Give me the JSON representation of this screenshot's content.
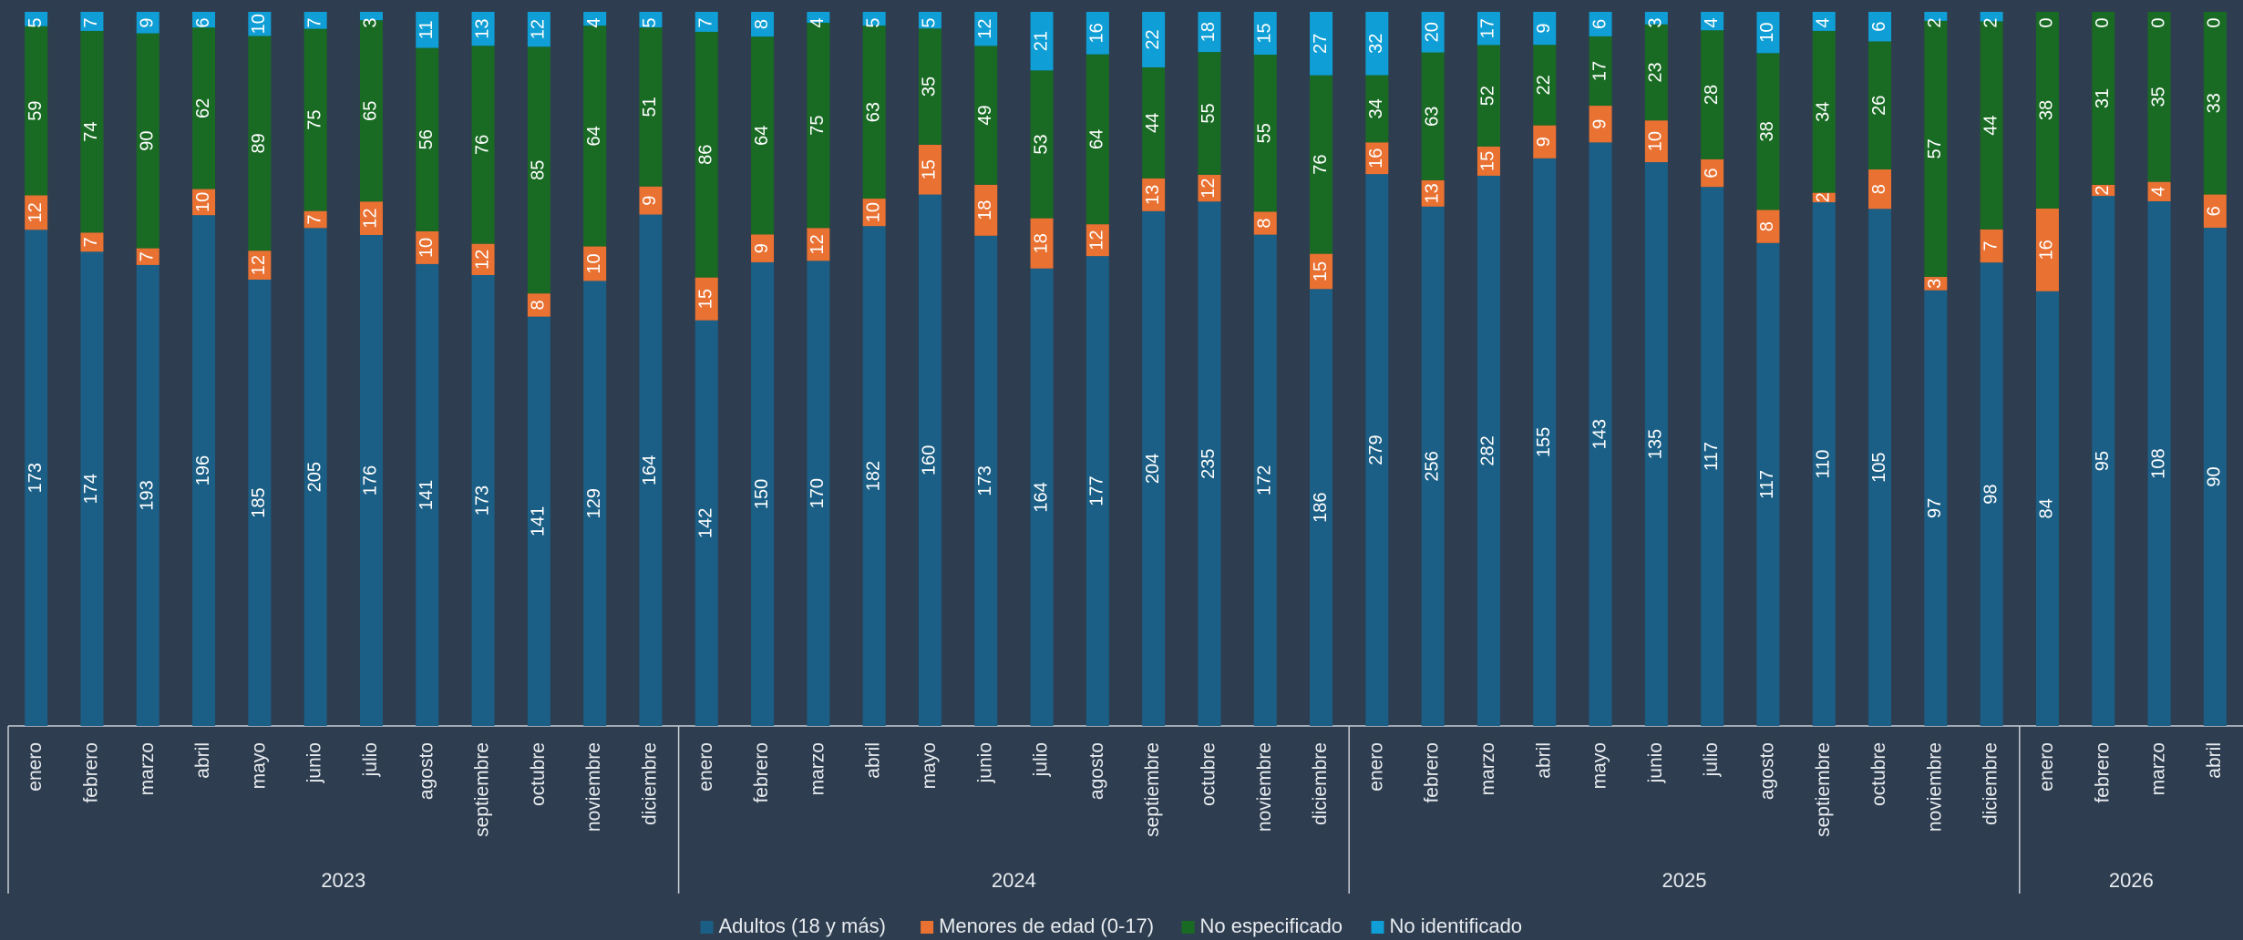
{
  "chart_data": {
    "type": "bar",
    "stacked": "percent",
    "groups": [
      {
        "name": "2023",
        "categories": [
          "enero",
          "febrero",
          "marzo",
          "abril",
          "mayo",
          "junio",
          "julio",
          "agosto",
          "septiembre",
          "octubre",
          "noviembre",
          "diciembre"
        ]
      },
      {
        "name": "2024",
        "categories": [
          "enero",
          "febrero",
          "marzo",
          "abril",
          "mayo",
          "junio",
          "julio",
          "agosto",
          "septiembre",
          "octubre",
          "noviembre",
          "diciembre"
        ]
      },
      {
        "name": "2025",
        "categories": [
          "enero",
          "febrero",
          "marzo",
          "abril",
          "mayo",
          "junio",
          "julio",
          "agosto",
          "septiembre",
          "octubre",
          "noviembre",
          "diciembre"
        ]
      },
      {
        "name": "2026",
        "categories": [
          "enero",
          "febrero",
          "marzo",
          "abril"
        ]
      }
    ],
    "series": [
      {
        "name": "Adultos (18 y más)",
        "color": "#1b5f86",
        "values": [
          173,
          174,
          193,
          196,
          185,
          205,
          176,
          141,
          173,
          141,
          129,
          164,
          142,
          150,
          170,
          182,
          160,
          173,
          164,
          177,
          204,
          235,
          172,
          186,
          279,
          256,
          282,
          155,
          143,
          135,
          117,
          117,
          110,
          105,
          97,
          98,
          84,
          95,
          108,
          90
        ]
      },
      {
        "name": "Menores de edad (0-17)",
        "color": "#e97132",
        "values": [
          12,
          7,
          7,
          10,
          12,
          7,
          12,
          10,
          12,
          8,
          10,
          9,
          15,
          9,
          12,
          10,
          15,
          18,
          18,
          12,
          13,
          12,
          8,
          15,
          16,
          13,
          15,
          9,
          9,
          10,
          6,
          8,
          2,
          8,
          3,
          7,
          16,
          2,
          4,
          6
        ]
      },
      {
        "name": "No especificado",
        "color": "#196b24",
        "values": [
          59,
          74,
          90,
          62,
          89,
          75,
          65,
          56,
          76,
          85,
          64,
          51,
          86,
          64,
          75,
          63,
          35,
          49,
          53,
          64,
          44,
          55,
          55,
          76,
          34,
          63,
          52,
          22,
          17,
          23,
          28,
          38,
          34,
          26,
          57,
          44,
          38,
          31,
          35,
          33
        ]
      },
      {
        "name": "No identificado",
        "color": "#0f9ed5",
        "values": [
          5,
          7,
          9,
          6,
          10,
          7,
          3,
          11,
          13,
          12,
          4,
          5,
          7,
          8,
          4,
          5,
          5,
          12,
          21,
          16,
          22,
          18,
          15,
          27,
          32,
          20,
          17,
          9,
          6,
          3,
          4,
          10,
          4,
          6,
          2,
          2,
          0,
          0,
          0,
          0
        ]
      }
    ],
    "legend": "bottom"
  }
}
